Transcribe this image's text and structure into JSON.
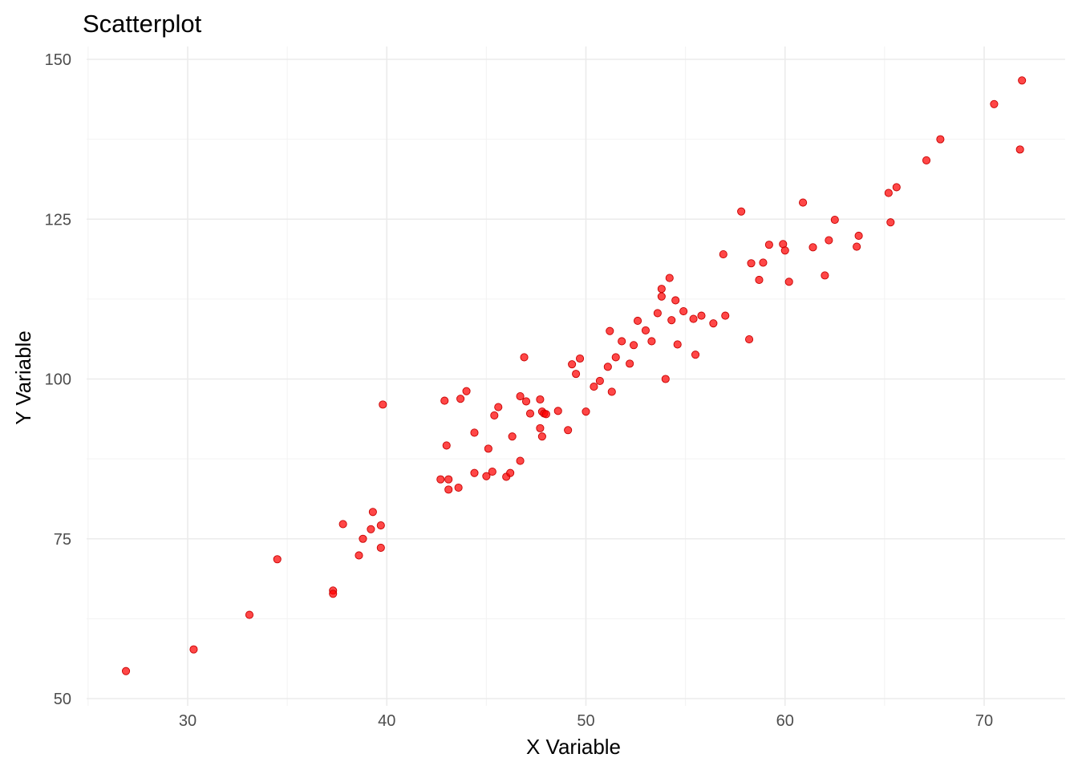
{
  "chart_data": {
    "type": "scatter",
    "title": "Scatterplot",
    "xlabel": "X Variable",
    "ylabel": "Y Variable",
    "xlim": [
      24.8,
      74.0
    ],
    "ylim": [
      50,
      150
    ],
    "x_ticks": [
      30,
      40,
      50,
      60,
      70
    ],
    "y_ticks": [
      50,
      75,
      100,
      125,
      150
    ],
    "x_tick_labels": [
      "30",
      "40",
      "50",
      "60",
      "70"
    ],
    "y_tick_labels": [
      "50",
      "75",
      "100",
      "125",
      "150"
    ],
    "grid": true,
    "point_color": "#ff0000",
    "points": [
      [
        26.9,
        54.3
      ],
      [
        30.3,
        57.7
      ],
      [
        33.1,
        63.1
      ],
      [
        34.5,
        71.8
      ],
      [
        37.3,
        66.9
      ],
      [
        37.3,
        66.4
      ],
      [
        37.8,
        77.3
      ],
      [
        38.6,
        72.4
      ],
      [
        38.8,
        75.0
      ],
      [
        39.2,
        76.5
      ],
      [
        39.3,
        79.2
      ],
      [
        39.7,
        77.1
      ],
      [
        39.7,
        73.6
      ],
      [
        39.8,
        96.0
      ],
      [
        42.7,
        84.3
      ],
      [
        42.9,
        96.6
      ],
      [
        43.0,
        89.6
      ],
      [
        43.1,
        84.3
      ],
      [
        43.1,
        82.7
      ],
      [
        43.6,
        83.0
      ],
      [
        43.7,
        96.9
      ],
      [
        44.0,
        98.1
      ],
      [
        44.4,
        91.6
      ],
      [
        44.4,
        85.3
      ],
      [
        45.0,
        84.8
      ],
      [
        45.1,
        89.1
      ],
      [
        45.3,
        85.5
      ],
      [
        45.4,
        94.3
      ],
      [
        45.6,
        95.6
      ],
      [
        46.0,
        84.7
      ],
      [
        46.2,
        85.3
      ],
      [
        46.3,
        91.0
      ],
      [
        46.7,
        87.2
      ],
      [
        46.7,
        97.3
      ],
      [
        46.9,
        103.4
      ],
      [
        47.0,
        96.5
      ],
      [
        47.2,
        94.6
      ],
      [
        47.7,
        96.8
      ],
      [
        47.7,
        92.3
      ],
      [
        47.8,
        94.9
      ],
      [
        47.8,
        91.0
      ],
      [
        47.9,
        94.6
      ],
      [
        48.0,
        94.5
      ],
      [
        48.6,
        95.0
      ],
      [
        49.1,
        92.0
      ],
      [
        49.3,
        102.3
      ],
      [
        49.5,
        100.8
      ],
      [
        49.7,
        103.2
      ],
      [
        50.0,
        94.9
      ],
      [
        50.4,
        98.8
      ],
      [
        50.7,
        99.7
      ],
      [
        51.1,
        101.9
      ],
      [
        51.2,
        107.5
      ],
      [
        51.3,
        98.0
      ],
      [
        51.5,
        103.4
      ],
      [
        51.8,
        105.9
      ],
      [
        52.2,
        102.4
      ],
      [
        52.4,
        105.3
      ],
      [
        52.6,
        109.1
      ],
      [
        53.0,
        107.6
      ],
      [
        53.3,
        105.9
      ],
      [
        53.6,
        110.3
      ],
      [
        53.8,
        114.1
      ],
      [
        53.8,
        112.9
      ],
      [
        54.0,
        100.0
      ],
      [
        54.2,
        115.8
      ],
      [
        54.3,
        109.2
      ],
      [
        54.5,
        112.3
      ],
      [
        54.6,
        105.4
      ],
      [
        54.9,
        110.6
      ],
      [
        55.4,
        109.4
      ],
      [
        55.5,
        103.8
      ],
      [
        55.8,
        109.9
      ],
      [
        56.4,
        108.7
      ],
      [
        56.9,
        119.5
      ],
      [
        57.0,
        109.9
      ],
      [
        57.8,
        126.2
      ],
      [
        58.2,
        106.2
      ],
      [
        58.3,
        118.1
      ],
      [
        58.7,
        115.5
      ],
      [
        58.9,
        118.2
      ],
      [
        59.2,
        121.0
      ],
      [
        59.9,
        121.1
      ],
      [
        60.0,
        120.1
      ],
      [
        60.2,
        115.2
      ],
      [
        60.9,
        127.6
      ],
      [
        61.4,
        120.6
      ],
      [
        62.0,
        116.2
      ],
      [
        62.2,
        121.7
      ],
      [
        62.5,
        124.9
      ],
      [
        63.6,
        120.7
      ],
      [
        63.7,
        122.4
      ],
      [
        65.2,
        129.1
      ],
      [
        65.3,
        124.5
      ],
      [
        65.6,
        130.0
      ],
      [
        67.1,
        134.2
      ],
      [
        67.8,
        137.5
      ],
      [
        70.5,
        143.0
      ],
      [
        71.8,
        135.9
      ],
      [
        71.9,
        146.7
      ]
    ]
  }
}
